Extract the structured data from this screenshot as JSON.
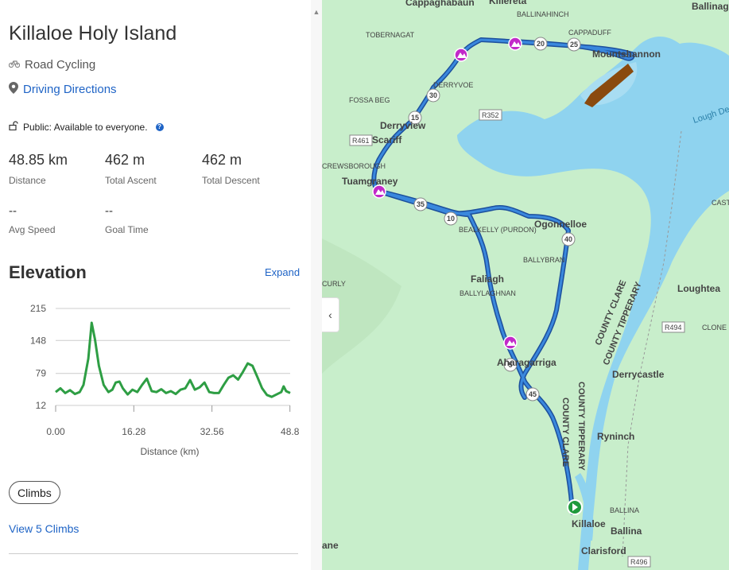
{
  "route": {
    "title": "Killaloe Holy Island",
    "activity": "Road Cycling",
    "directions_label": "Driving Directions",
    "visibility": "Public: Available to everyone."
  },
  "stats": [
    {
      "value": "48.85 km",
      "label": "Distance"
    },
    {
      "value": "462 m",
      "label": "Total Ascent"
    },
    {
      "value": "462 m",
      "label": "Total Descent"
    },
    {
      "value": "--",
      "label": "Avg Speed"
    },
    {
      "value": "--",
      "label": "Goal Time"
    }
  ],
  "elevation": {
    "heading": "Elevation",
    "expand_label": "Expand",
    "buttons": {
      "climbs": "Climbs",
      "view_climbs": "View 5 Climbs"
    }
  },
  "chart_data": {
    "type": "line",
    "title": "",
    "xlabel": "Distance (km)",
    "ylabel": "",
    "y_ticks": [
      "215",
      "148",
      "79",
      "12"
    ],
    "x_ticks": [
      "0.00",
      "16.28",
      "32.56",
      "48.8"
    ],
    "xlim": [
      0,
      48.85
    ],
    "ylim": [
      12,
      215
    ],
    "line_color": "#2e9e44",
    "series": [
      {
        "x": [
          0,
          1,
          2,
          3,
          4,
          5,
          5.8,
          6.8,
          7.5,
          8.2,
          9,
          10,
          11,
          11.8,
          12.5,
          13.3,
          14,
          15,
          16,
          17,
          18,
          19,
          20,
          21,
          22,
          23,
          24,
          25,
          26,
          27,
          28,
          29,
          30,
          31,
          32,
          33,
          34,
          35,
          36,
          37,
          38,
          39,
          40,
          41,
          42,
          43,
          44,
          45,
          46,
          47,
          47.5,
          48,
          48.85
        ],
        "y": [
          40,
          48,
          38,
          44,
          36,
          40,
          55,
          110,
          185,
          150,
          95,
          55,
          40,
          45,
          60,
          62,
          48,
          35,
          45,
          40,
          55,
          68,
          42,
          40,
          46,
          38,
          42,
          36,
          45,
          48,
          65,
          45,
          50,
          60,
          40,
          38,
          38,
          55,
          70,
          75,
          66,
          82,
          100,
          95,
          72,
          48,
          34,
          30,
          35,
          40,
          52,
          42,
          38
        ]
      }
    ]
  },
  "map": {
    "labels": {
      "cappaghabaun": "Cappaghabaun",
      "killereta": "Killereta",
      "ballinahinch": "BALLINAHINCH",
      "ballinag": "Ballinag",
      "tobernagat": "TOBERNAGAT",
      "cappaduff": "CAPPADUFF",
      "mountshannon": "Mountshannon",
      "fossa_beg": "FOSSA BEG",
      "derryvoe": "DERRYVOE",
      "derrynew": "Derryview",
      "scariff": "Scariff",
      "r352a": "R352",
      "r461": "R461",
      "crewsborough": "CREWSBOROUGH",
      "tuamgraney": "Tuamgraney",
      "lough_derg": "Lough Derg",
      "bealkelly": "BEALKELLY (PURDON)",
      "ogonnelloe": "Ogonnelloe",
      "ballybran": "BALLYBRAN",
      "faliagh": "Faliagh",
      "ballylaghnan": "BALLYLAGHNAN",
      "curly": "CURLY",
      "county_clare_1": "COUNTY CLARE",
      "county_tipperary_1": "COUNTY TIPPERARY",
      "loughtea": "Loughtea",
      "r494": "R494",
      "clone": "CLONE",
      "cast": "CAST",
      "aharagarriga": "Aharagarriga",
      "derrycastle": "Derrycastle",
      "county_clare_2": "COUNTY CLARE",
      "county_tipperary_2": "COUNTY TIPPERARY",
      "ryninch": "Ryninch",
      "ballina_small": "BALLINA",
      "killaloe": "Killaloe",
      "ballina": "Ballina",
      "clarisford": "Clarisford",
      "r496": "R496",
      "bane": "ane"
    },
    "markers": [
      "5",
      "10",
      "15",
      "20",
      "25",
      "30",
      "35",
      "40",
      "45"
    ],
    "collapse_icon": "chevron-left-icon",
    "colors": {
      "land": "#c8eecb",
      "water": "#8fd3ef",
      "route": "#1c4f9c",
      "route_inner": "#3a88dd",
      "climb_marker": "#c229c9",
      "start_marker": "#1e9a3c",
      "segment": "#8a4a0e"
    }
  }
}
